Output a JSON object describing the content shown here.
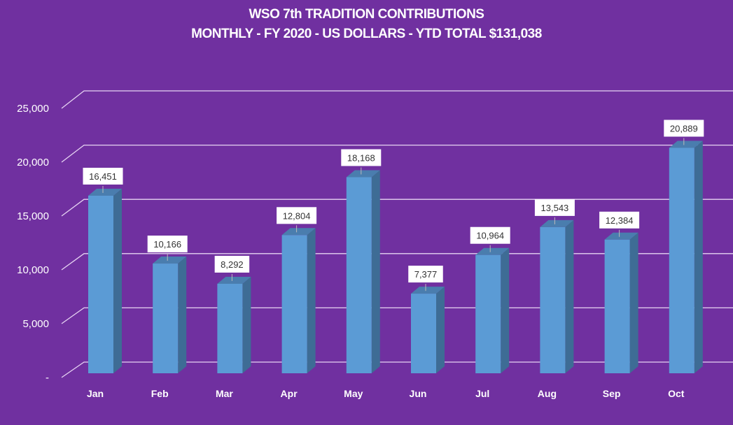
{
  "chart_data": {
    "type": "bar",
    "title": "WSO 7th TRADITION CONTRIBUTIONS",
    "subtitle": "MONTHLY - FY 2020 - US DOLLARS - YTD TOTAL $131,038",
    "xlabel": "",
    "ylabel": "",
    "categories": [
      "Jan",
      "Feb",
      "Mar",
      "Apr",
      "May",
      "Jun",
      "Jul",
      "Aug",
      "Sep",
      "Oct"
    ],
    "values": [
      16451,
      10166,
      8292,
      12804,
      18168,
      7377,
      10964,
      13543,
      12384,
      20889
    ],
    "value_labels": [
      "16,451",
      "10,166",
      "8,292",
      "12,804",
      "18,168",
      "7,377",
      "10,964",
      "13,543",
      "12,384",
      "20,889"
    ],
    "ylim": [
      0,
      25000
    ],
    "yticks": [
      0,
      5000,
      10000,
      15000,
      20000,
      25000
    ],
    "ytick_labels": [
      "-",
      "5,000",
      "10,000",
      "15,000",
      "20,000",
      "25,000"
    ],
    "grid": true,
    "legend": "none",
    "colors": {
      "background": "#7030A0",
      "bar_front": "#5B9BD5",
      "bar_side": "#3E6C95",
      "bar_top": "#4A7DAE",
      "grid": "#E6D3F2"
    }
  }
}
